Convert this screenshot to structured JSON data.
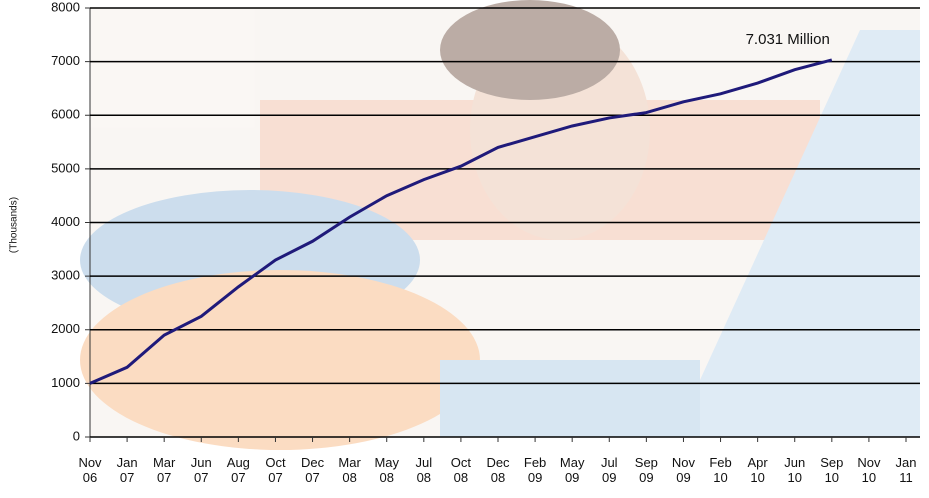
{
  "chart_data": {
    "type": "line",
    "y_label": "(Thousands)",
    "annotation": "7.031 Million",
    "categories": [
      "Nov 06",
      "Jan 07",
      "Mar 07",
      "Jun 07",
      "Aug 07",
      "Oct 07",
      "Dec 07",
      "Mar 08",
      "May 08",
      "Jul 08",
      "Oct 08",
      "Dec 08",
      "Feb 09",
      "May 09",
      "Jul 09",
      "Sep 09",
      "Nov 09",
      "Feb 10",
      "Apr 10",
      "Jun 10",
      "Sep 10",
      "Nov 10",
      "Jan 11"
    ],
    "values": [
      1000,
      1300,
      1900,
      2250,
      2800,
      3300,
      3650,
      4100,
      4500,
      4800,
      5050,
      5400,
      5600,
      5800,
      5950,
      6050,
      6250,
      6400,
      6600,
      6850,
      7031,
      null,
      null
    ],
    "color": "#1f1a7a",
    "ylim": [
      0,
      8000
    ],
    "yticks": [
      0,
      1000,
      2000,
      3000,
      4000,
      5000,
      6000,
      7000,
      8000
    ],
    "grid": true
  }
}
